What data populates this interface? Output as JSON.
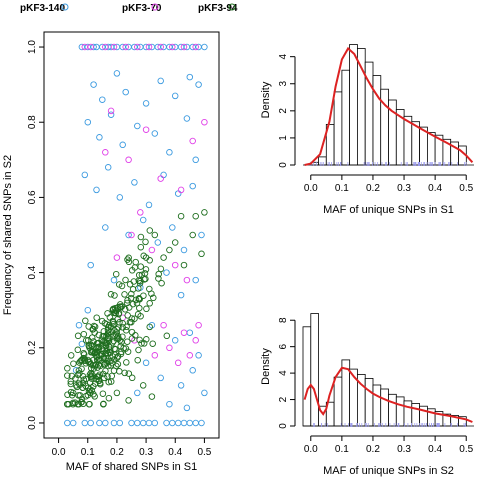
{
  "colors": {
    "pKF3-140": "#3d9be0",
    "pKF3-70": "#e040e8",
    "pKF3-94": "#1f6e1f",
    "density_line": "#dd2222",
    "rug": "#9999ee",
    "bar_fill": "#ffffff",
    "bar_stroke": "#000000"
  },
  "chart_data": [
    {
      "type": "scatter",
      "xlabel": "MAF of shared SNPs in S1",
      "ylabel": "Frequency of shared SNPs in S2",
      "xlim": [
        -0.05,
        0.55
      ],
      "ylim": [
        -0.04,
        1.04
      ],
      "x_ticks": [
        "0.0",
        "0.1",
        "0.2",
        "0.3",
        "0.4",
        "0.5"
      ],
      "y_ticks": [
        "0.0",
        "0.2",
        "0.4",
        "0.6",
        "0.8",
        "1.0"
      ],
      "legend": {
        "placement": "top",
        "entries": [
          "pKF3-140",
          "pKF3-70",
          "pKF3-94"
        ]
      },
      "series": [
        {
          "name": "pKF3-140",
          "marker": "open-circle",
          "points": [
            [
              0.08,
              1.0
            ],
            [
              0.1,
              1.0
            ],
            [
              0.12,
              1.0
            ],
            [
              0.13,
              1.0
            ],
            [
              0.15,
              1.0
            ],
            [
              0.17,
              1.0
            ],
            [
              0.18,
              1.0
            ],
            [
              0.2,
              1.0
            ],
            [
              0.22,
              1.0
            ],
            [
              0.24,
              1.0
            ],
            [
              0.26,
              1.0
            ],
            [
              0.28,
              1.0
            ],
            [
              0.3,
              1.0
            ],
            [
              0.32,
              1.0
            ],
            [
              0.34,
              1.0
            ],
            [
              0.36,
              1.0
            ],
            [
              0.38,
              1.0
            ],
            [
              0.4,
              1.0
            ],
            [
              0.42,
              1.0
            ],
            [
              0.44,
              1.0
            ],
            [
              0.46,
              1.0
            ],
            [
              0.48,
              1.0
            ],
            [
              0.5,
              1.0
            ],
            [
              0.03,
              0.0
            ],
            [
              0.05,
              0.0
            ],
            [
              0.09,
              0.0
            ],
            [
              0.11,
              0.0
            ],
            [
              0.14,
              0.0
            ],
            [
              0.16,
              0.0
            ],
            [
              0.19,
              0.0
            ],
            [
              0.21,
              0.0
            ],
            [
              0.25,
              0.0
            ],
            [
              0.27,
              0.0
            ],
            [
              0.29,
              0.0
            ],
            [
              0.31,
              0.0
            ],
            [
              0.33,
              0.0
            ],
            [
              0.37,
              0.0
            ],
            [
              0.39,
              0.0
            ],
            [
              0.41,
              0.0
            ],
            [
              0.43,
              0.0
            ],
            [
              0.45,
              0.0
            ],
            [
              0.47,
              0.0
            ],
            [
              0.49,
              0.0
            ],
            [
              0.12,
              0.9
            ],
            [
              0.15,
              0.86
            ],
            [
              0.2,
              0.93
            ],
            [
              0.23,
              0.88
            ],
            [
              0.3,
              0.85
            ],
            [
              0.35,
              0.91
            ],
            [
              0.4,
              0.87
            ],
            [
              0.45,
              0.92
            ],
            [
              0.48,
              0.9
            ],
            [
              0.1,
              0.8
            ],
            [
              0.14,
              0.76
            ],
            [
              0.18,
              0.82
            ],
            [
              0.22,
              0.74
            ],
            [
              0.27,
              0.79
            ],
            [
              0.33,
              0.77
            ],
            [
              0.38,
              0.72
            ],
            [
              0.44,
              0.81
            ],
            [
              0.47,
              0.7
            ],
            [
              0.09,
              0.66
            ],
            [
              0.13,
              0.62
            ],
            [
              0.17,
              0.68
            ],
            [
              0.21,
              0.6
            ],
            [
              0.26,
              0.64
            ],
            [
              0.31,
              0.58
            ],
            [
              0.36,
              0.66
            ],
            [
              0.41,
              0.61
            ],
            [
              0.46,
              0.63
            ],
            [
              0.16,
              0.52
            ],
            [
              0.24,
              0.5
            ],
            [
              0.29,
              0.54
            ],
            [
              0.34,
              0.48
            ],
            [
              0.39,
              0.52
            ],
            [
              0.43,
              0.46
            ],
            [
              0.49,
              0.5
            ],
            [
              0.11,
              0.42
            ],
            [
              0.19,
              0.38
            ],
            [
              0.28,
              0.36
            ],
            [
              0.37,
              0.4
            ],
            [
              0.42,
              0.34
            ],
            [
              0.47,
              0.38
            ],
            [
              0.07,
              0.26
            ],
            [
              0.08,
              0.21
            ],
            [
              0.06,
              0.14
            ],
            [
              0.1,
              0.3
            ],
            [
              0.32,
              0.26
            ],
            [
              0.4,
              0.22
            ],
            [
              0.45,
              0.24
            ],
            [
              0.48,
              0.18
            ],
            [
              0.35,
              0.12
            ],
            [
              0.42,
              0.1
            ],
            [
              0.46,
              0.14
            ],
            [
              0.5,
              0.08
            ],
            [
              0.27,
              0.08
            ],
            [
              0.38,
              0.05
            ],
            [
              0.44,
              0.04
            ],
            [
              0.3,
              0.16
            ]
          ]
        },
        {
          "name": "pKF3-70",
          "marker": "open-circle",
          "points": [
            [
              0.09,
              1.0
            ],
            [
              0.11,
              1.0
            ],
            [
              0.16,
              1.0
            ],
            [
              0.19,
              1.0
            ],
            [
              0.23,
              1.0
            ],
            [
              0.27,
              1.0
            ],
            [
              0.31,
              1.0
            ],
            [
              0.35,
              1.0
            ],
            [
              0.39,
              1.0
            ],
            [
              0.43,
              1.0
            ],
            [
              0.47,
              1.0
            ],
            [
              0.18,
              0.83
            ],
            [
              0.3,
              0.78
            ],
            [
              0.46,
              0.75
            ],
            [
              0.5,
              0.8
            ],
            [
              0.16,
              0.72
            ],
            [
              0.24,
              0.7
            ],
            [
              0.35,
              0.65
            ],
            [
              0.42,
              0.62
            ],
            [
              0.28,
              0.56
            ],
            [
              0.25,
              0.5
            ],
            [
              0.32,
              0.46
            ],
            [
              0.4,
              0.42
            ],
            [
              0.44,
              0.38
            ],
            [
              0.2,
              0.44
            ],
            [
              0.36,
              0.26
            ],
            [
              0.43,
              0.24
            ],
            [
              0.47,
              0.22
            ],
            [
              0.38,
              0.2
            ],
            [
              0.45,
              0.18
            ],
            [
              0.41,
              0.16
            ],
            [
              0.33,
              0.18
            ],
            [
              0.26,
              0.22
            ],
            [
              0.22,
              0.28
            ],
            [
              0.48,
              0.26
            ]
          ]
        },
        {
          "name": "pKF3-94",
          "marker": "open-circle",
          "clouds": [
            {
              "x": 0.12,
              "y": 0.16,
              "sx": 0.045,
              "sy": 0.055,
              "n": 170
            },
            {
              "x": 0.2,
              "y": 0.24,
              "sx": 0.045,
              "sy": 0.07,
              "n": 110
            },
            {
              "x": 0.27,
              "y": 0.32,
              "sx": 0.045,
              "sy": 0.07,
              "n": 55
            }
          ],
          "points": [
            [
              0.36,
              0.44
            ],
            [
              0.4,
              0.48
            ],
            [
              0.46,
              0.5
            ],
            [
              0.47,
              0.55
            ],
            [
              0.5,
              0.56
            ],
            [
              0.49,
              0.45
            ],
            [
              0.43,
              0.42
            ],
            [
              0.42,
              0.55
            ],
            [
              0.3,
              0.44
            ],
            [
              0.33,
              0.5
            ],
            [
              0.38,
              0.46
            ],
            [
              0.2,
              0.08
            ],
            [
              0.24,
              0.06
            ],
            [
              0.29,
              0.1
            ],
            [
              0.32,
              0.07
            ],
            [
              0.05,
              0.08
            ],
            [
              0.06,
              0.1
            ]
          ]
        }
      ]
    },
    {
      "type": "bar",
      "subtype": "histogram-with-density",
      "xlabel": "MAF of unique SNPs in S1",
      "ylabel": "Density",
      "xlim": [
        -0.025,
        0.525
      ],
      "ylim": [
        0,
        4.8
      ],
      "x_ticks": [
        "0.0",
        "0.1",
        "0.2",
        "0.3",
        "0.4",
        "0.5"
      ],
      "y_ticks": [
        "0",
        "1",
        "2",
        "3",
        "4"
      ],
      "bin_width": 0.025,
      "bin_starts": [
        0.0,
        0.025,
        0.05,
        0.075,
        0.1,
        0.125,
        0.15,
        0.175,
        0.2,
        0.225,
        0.25,
        0.275,
        0.3,
        0.325,
        0.35,
        0.375,
        0.4,
        0.425,
        0.45,
        0.475
      ],
      "values": [
        0.1,
        0.3,
        1.5,
        2.7,
        3.5,
        4.45,
        4.3,
        3.8,
        3.3,
        2.8,
        2.4,
        2.05,
        1.8,
        1.6,
        1.4,
        1.2,
        1.1,
        0.95,
        0.85,
        0.7
      ],
      "density_curve": {
        "x": [
          -0.02,
          0.0,
          0.03,
          0.06,
          0.08,
          0.1,
          0.12,
          0.14,
          0.16,
          0.18,
          0.2,
          0.22,
          0.24,
          0.26,
          0.28,
          0.3,
          0.33,
          0.36,
          0.4,
          0.44,
          0.48,
          0.5,
          0.52
        ],
        "y": [
          0.0,
          0.05,
          0.4,
          1.6,
          2.9,
          3.9,
          4.3,
          4.1,
          3.65,
          3.2,
          2.8,
          2.45,
          2.2,
          2.0,
          1.85,
          1.7,
          1.5,
          1.3,
          1.05,
          0.8,
          0.55,
          0.35,
          0.1
        ]
      }
    },
    {
      "type": "bar",
      "subtype": "histogram-with-density",
      "xlabel": "MAF of unique SNPs in S2",
      "ylabel": "Density",
      "xlim": [
        -0.025,
        0.525
      ],
      "ylim": [
        0,
        9.0
      ],
      "x_ticks": [
        "0.0",
        "0.1",
        "0.2",
        "0.3",
        "0.4",
        "0.5"
      ],
      "y_ticks": [
        "0",
        "2",
        "4",
        "6",
        "8"
      ],
      "bin_width": 0.025,
      "bin_starts": [
        -0.025,
        0.0,
        0.025,
        0.05,
        0.075,
        0.1,
        0.125,
        0.15,
        0.175,
        0.2,
        0.225,
        0.25,
        0.275,
        0.3,
        0.325,
        0.35,
        0.375,
        0.4,
        0.425,
        0.45,
        0.475
      ],
      "values": [
        7.5,
        8.5,
        1.5,
        1.8,
        3.7,
        5.0,
        4.3,
        3.9,
        3.6,
        3.1,
        2.8,
        2.4,
        2.2,
        1.9,
        1.7,
        1.5,
        1.3,
        1.1,
        0.9,
        0.8,
        0.7
      ],
      "density_curve": {
        "x": [
          -0.02,
          -0.01,
          0.0,
          0.01,
          0.02,
          0.03,
          0.04,
          0.05,
          0.06,
          0.08,
          0.1,
          0.12,
          0.14,
          0.16,
          0.18,
          0.2,
          0.22,
          0.25,
          0.28,
          0.31,
          0.35,
          0.4,
          0.45,
          0.5,
          0.52
        ],
        "y": [
          2.0,
          2.8,
          3.1,
          2.8,
          2.0,
          1.2,
          0.9,
          1.3,
          2.3,
          3.7,
          4.4,
          4.3,
          3.7,
          3.2,
          2.8,
          2.45,
          2.2,
          1.9,
          1.65,
          1.45,
          1.25,
          0.95,
          0.75,
          0.5,
          0.3
        ]
      }
    }
  ]
}
